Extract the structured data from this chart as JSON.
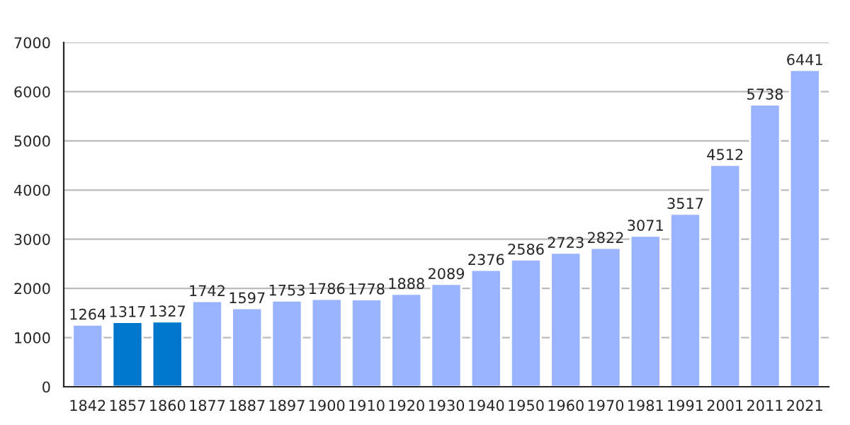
{
  "chart_data": {
    "type": "bar",
    "categories": [
      "1842",
      "1857",
      "1860",
      "1877",
      "1887",
      "1897",
      "1900",
      "1910",
      "1920",
      "1930",
      "1940",
      "1950",
      "1960",
      "1970",
      "1981",
      "1991",
      "2001",
      "2011",
      "2021"
    ],
    "values": [
      1264,
      1317,
      1327,
      1742,
      1597,
      1753,
      1786,
      1778,
      1888,
      2089,
      2376,
      2586,
      2723,
      2822,
      3071,
      3517,
      4512,
      5738,
      6441
    ],
    "colors": [
      "#99b3ff",
      "#0077cc",
      "#0077cc",
      "#99b3ff",
      "#99b3ff",
      "#99b3ff",
      "#99b3ff",
      "#99b3ff",
      "#99b3ff",
      "#99b3ff",
      "#99b3ff",
      "#99b3ff",
      "#99b3ff",
      "#99b3ff",
      "#99b3ff",
      "#99b3ff",
      "#99b3ff",
      "#99b3ff",
      "#99b3ff"
    ],
    "ylim": [
      0,
      7000
    ],
    "yticks": [
      0,
      1000,
      2000,
      3000,
      4000,
      5000,
      6000,
      7000
    ],
    "grid": "y",
    "data_labels": true
  }
}
